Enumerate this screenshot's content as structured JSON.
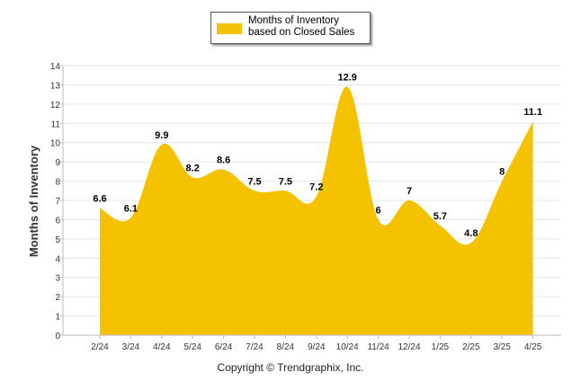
{
  "chart_data": {
    "type": "area",
    "categories": [
      "2/24",
      "3/24",
      "4/24",
      "5/24",
      "6/24",
      "7/24",
      "8/24",
      "9/24",
      "10/24",
      "11/24",
      "12/24",
      "1/25",
      "2/25",
      "3/25",
      "4/25"
    ],
    "series": [
      {
        "name": "Months of Inventory based on Closed Sales",
        "values": [
          6.6,
          6.1,
          9.9,
          8.2,
          8.6,
          7.5,
          7.5,
          7.2,
          12.9,
          6,
          7,
          5.7,
          4.8,
          8,
          11.1
        ],
        "labels": [
          "6.6",
          "6.1",
          "9.9",
          "8.2",
          "8.6",
          "7.5",
          "7.5",
          "7.2",
          "12.9",
          "6",
          "7",
          "5.7",
          "4.8",
          "8",
          "11.1"
        ],
        "color": "#F5C200"
      }
    ],
    "title": "",
    "xlabel": "",
    "ylabel": "Months of Inventory",
    "ylim": [
      0,
      14
    ],
    "yticks": [
      "0",
      "1",
      "2",
      "3",
      "4",
      "5",
      "6",
      "7",
      "8",
      "9",
      "10",
      "11",
      "12",
      "13",
      "14"
    ],
    "grid": true,
    "legend_position": "top-center"
  },
  "legend": {
    "label": "Months of Inventory based on Closed Sales"
  },
  "footer": {
    "copyright": "Copyright © Trendgraphix, Inc."
  },
  "colors": {
    "area": "#F5C200",
    "grid": "#e6e6e6",
    "axis": "#bbbbbb"
  }
}
